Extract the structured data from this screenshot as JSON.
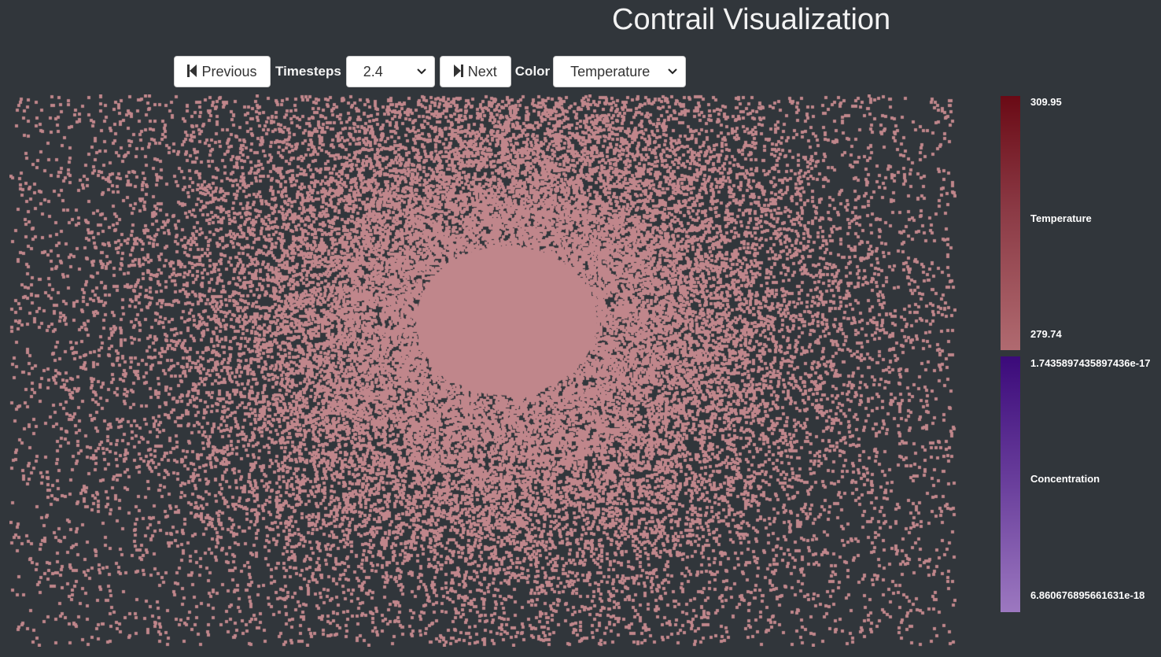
{
  "app": {
    "title": "Contrail Visualization"
  },
  "toolbar": {
    "previous_label": "Previous",
    "previous_icon": "skip-back-icon",
    "timesteps_label": "Timesteps",
    "timestep_value": "2.4",
    "next_label": "Next",
    "next_icon": "skip-forward-icon",
    "color_label": "Color",
    "color_value": "Temperature"
  },
  "colors": {
    "background": "#31363b",
    "point_color": "#c0868b"
  },
  "legend": {
    "temperature": {
      "max": "309.95",
      "label": "Temperature",
      "min": "279.74",
      "gradient": [
        "#6a0a15",
        "#8b3a45",
        "#b06a70"
      ]
    },
    "concentration": {
      "max": "1.7435897435897436e-17",
      "label": "Concentration",
      "min": "6.860676895661631e-18",
      "gradient": [
        "#3b0a7a",
        "#6a3f9c",
        "#9c78c0"
      ]
    }
  }
}
